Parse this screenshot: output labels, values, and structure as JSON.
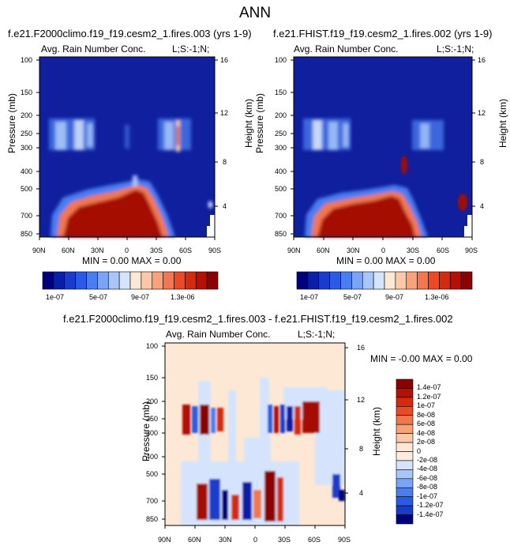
{
  "figure": {
    "title": "ANN"
  },
  "chart_data": [
    {
      "type": "heatmap",
      "panel": "test",
      "title": "f.e21.F2000climo.f19_f19.cesm2_1.fires.003 (yrs 1-9)",
      "variable_label": "Avg. Rain Number Conc.",
      "code_label": "L;S:-1;N;",
      "xlabel": "",
      "ylabel": "Pressure (mb)",
      "ylabel_right": "Height (km)",
      "x_ticks": [
        "90N",
        "60N",
        "30N",
        "0",
        "30S",
        "60S",
        "90S"
      ],
      "y_ticks": [
        "100",
        "150",
        "200",
        "250",
        "300",
        "400",
        "500",
        "700",
        "850"
      ],
      "y_ticks_right": [
        "16",
        "12",
        "8",
        "4"
      ],
      "stats": "MIN =  0.00  MAX =  0.00",
      "features": [
        {
          "lat_from": 80,
          "lat_to": -30,
          "p_top": 430,
          "p_bottom": 900,
          "level": "max"
        },
        {
          "lat_from": 80,
          "lat_to": 40,
          "p_top": 220,
          "p_bottom": 330,
          "level": "low-mid"
        },
        {
          "lat_from": -40,
          "lat_to": -75,
          "p_top": 220,
          "p_bottom": 330,
          "level": "low-mid"
        }
      ]
    },
    {
      "type": "heatmap",
      "panel": "control",
      "title": "f.e21.FHIST.f19_f19.cesm2_1.fires.002 (yrs 1-9)",
      "variable_label": "Avg. Rain Number Conc.",
      "code_label": "L;S:-1;N;",
      "xlabel": "",
      "ylabel": "Pressure (mb)",
      "ylabel_right": "Height (km)",
      "x_ticks": [
        "90N",
        "60N",
        "30N",
        "0",
        "30S",
        "60S",
        "90S"
      ],
      "y_ticks": [
        "100",
        "150",
        "200",
        "250",
        "300",
        "400",
        "500",
        "700",
        "850"
      ],
      "y_ticks_right": [
        "16",
        "12",
        "8",
        "4"
      ],
      "stats": "MIN =  0.00  MAX =  0.00",
      "features": [
        {
          "lat_from": 80,
          "lat_to": -30,
          "p_top": 470,
          "p_bottom": 900,
          "level": "max"
        },
        {
          "lat_from": 80,
          "lat_to": 40,
          "p_top": 220,
          "p_bottom": 330,
          "level": "low-mid"
        },
        {
          "lat_from": -80,
          "lat_to": -88,
          "p_top": 550,
          "p_bottom": 660,
          "level": "max"
        }
      ]
    },
    {
      "type": "heatmap",
      "panel": "difference",
      "title": "f.e21.F2000climo.f19_f19.cesm2_1.fires.003 - f.e21.FHIST.f19_f19.cesm2_1.fires.002",
      "variable_label": "Avg. Rain Number Conc.",
      "code_label": "L;S:-1;N;",
      "xlabel": "",
      "ylabel": "Pressure (mb)",
      "ylabel_right": "Height (km)",
      "x_ticks": [
        "90N",
        "60N",
        "30N",
        "0",
        "30S",
        "60S",
        "90S"
      ],
      "y_ticks": [
        "100",
        "150",
        "200",
        "250",
        "300",
        "400",
        "500",
        "700",
        "850"
      ],
      "y_ticks_right": [
        "16",
        "12",
        "8",
        "4"
      ],
      "stats": "MIN = -0.00  MAX =  0.00"
    }
  ],
  "colorbar_top": {
    "labels": [
      "1e-07",
      "5e-07",
      "9e-07",
      "1.3e-06"
    ],
    "colors": [
      "#00007e",
      "#0a1fa8",
      "#1a3ccc",
      "#2b5be6",
      "#4a7df0",
      "#7aa4f5",
      "#a8c6fa",
      "#d5e4fc",
      "#fde8d6",
      "#fbc9a8",
      "#f7a27a",
      "#f2774e",
      "#ea4a28",
      "#d42a10",
      "#b51006",
      "#8c0000"
    ]
  },
  "colorbar_diff": {
    "labels": [
      "1.4e-07",
      "1.2e-07",
      "1e-07",
      "8e-08",
      "6e-08",
      "4e-08",
      "2e-08",
      "0",
      "-2e-08",
      "-4e-08",
      "-6e-08",
      "-8e-08",
      "-1e-07",
      "-1.2e-07",
      "-1.4e-07"
    ],
    "colors": [
      "#8c0000",
      "#b51006",
      "#d42a10",
      "#ea4a28",
      "#f2774e",
      "#f7a27a",
      "#fbc9a8",
      "#fde8d6",
      "#fdebdc",
      "#d5e4fc",
      "#a8c6fa",
      "#7aa4f5",
      "#4a7df0",
      "#2b5be6",
      "#1a3ccc",
      "#00007e"
    ]
  }
}
